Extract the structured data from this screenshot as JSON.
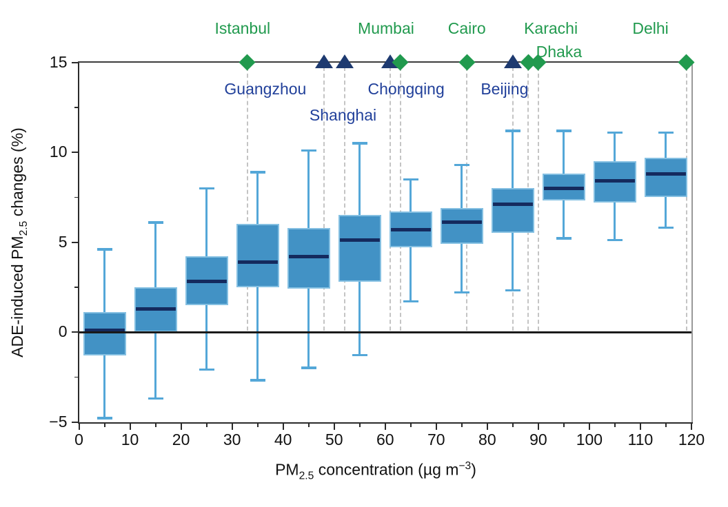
{
  "labels": {
    "y": {
      "pre": "ADE-induced PM",
      "sub": "2.5",
      "post": " changes (%)"
    },
    "x": {
      "pre": "PM",
      "sub": "2.5",
      "mid": " concentration (µg m",
      "sup": "−3",
      "post": ")"
    }
  },
  "colors": {
    "box_fill": "#4292c5",
    "box_edge": "#85c0e2",
    "median": "#142a5e",
    "whisker": "#54a7d8",
    "zero_line": "#1a1a1a",
    "spine_dark": "#2a2a2a",
    "spine_top": "#3c3c3c",
    "spine_right": "#999999",
    "dashed_line": "#c4c4c4",
    "green": "#219a4e",
    "navy_marker": "#1e3a70",
    "navy_text": "#21409a",
    "tick_text": "#111111"
  },
  "chart_data": {
    "type": "boxplot",
    "title": "",
    "xlabel": "PM2.5 concentration (µg m−3)",
    "ylabel": "ADE-induced PM2.5 changes (%)",
    "xlim": [
      0,
      120
    ],
    "ylim": [
      -5,
      15
    ],
    "grid": false,
    "zero_line": true,
    "x_tick_values": [
      0,
      10,
      20,
      30,
      40,
      50,
      60,
      70,
      80,
      90,
      100,
      110,
      120
    ],
    "x_tick_labels": [
      "0",
      "10",
      "20",
      "30",
      "40",
      "50",
      "60",
      "70",
      "80",
      "90",
      "100",
      "110",
      "120"
    ],
    "x_minor_ticks": [
      5,
      15,
      25,
      35,
      45,
      55,
      65,
      75,
      85,
      95,
      105,
      115
    ],
    "y_tick_values": [
      -5,
      0,
      5,
      10,
      15
    ],
    "y_tick_labels": [
      "−5",
      "0",
      "5",
      "10",
      "15"
    ],
    "y_minor_ticks": [
      -2.5,
      2.5,
      7.5,
      12.5
    ],
    "box_width": 8.4,
    "boxes": [
      {
        "x": 5,
        "whisker_low": -4.8,
        "q1": -1.3,
        "median": 0.1,
        "q3": 1.1,
        "whisker_high": 4.6
      },
      {
        "x": 15,
        "whisker_low": -3.7,
        "q1": 0.0,
        "median": 1.3,
        "q3": 2.5,
        "whisker_high": 6.1
      },
      {
        "x": 25,
        "whisker_low": -2.1,
        "q1": 1.5,
        "median": 2.8,
        "q3": 4.2,
        "whisker_high": 8.0
      },
      {
        "x": 35,
        "whisker_low": -2.7,
        "q1": 2.5,
        "median": 3.9,
        "q3": 6.0,
        "whisker_high": 8.9
      },
      {
        "x": 45,
        "whisker_low": -2.0,
        "q1": 2.4,
        "median": 4.2,
        "q3": 5.8,
        "whisker_high": 10.1
      },
      {
        "x": 55,
        "whisker_low": -1.3,
        "q1": 2.8,
        "median": 5.1,
        "q3": 6.5,
        "whisker_high": 10.5
      },
      {
        "x": 65,
        "whisker_low": 1.7,
        "q1": 4.7,
        "median": 5.7,
        "q3": 6.7,
        "whisker_high": 8.5
      },
      {
        "x": 75,
        "whisker_low": 2.2,
        "q1": 4.9,
        "median": 6.1,
        "q3": 6.9,
        "whisker_high": 9.3
      },
      {
        "x": 85,
        "whisker_low": 2.3,
        "q1": 5.5,
        "median": 7.1,
        "q3": 8.0,
        "whisker_high": 11.2
      },
      {
        "x": 95,
        "whisker_low": 5.2,
        "q1": 7.3,
        "median": 8.0,
        "q3": 8.8,
        "whisker_high": 11.2
      },
      {
        "x": 105,
        "whisker_low": 5.1,
        "q1": 7.2,
        "median": 8.4,
        "q3": 9.5,
        "whisker_high": 11.1
      },
      {
        "x": 115,
        "whisker_low": 5.8,
        "q1": 7.5,
        "median": 8.8,
        "q3": 9.7,
        "whisker_high": 11.1
      }
    ],
    "cities": [
      {
        "name": "Istanbul",
        "pm25": 33,
        "marker": "diamond",
        "color": "green",
        "label_row": 1,
        "label_dx": -7
      },
      {
        "name": "Guangzhou",
        "pm25": 48,
        "marker": "triangle",
        "color": "navy",
        "label_row": 1,
        "label_dx": -85
      },
      {
        "name": "Shanghai",
        "pm25": 52,
        "marker": "triangle",
        "color": "navy",
        "label_row": 2,
        "label_dx": -2
      },
      {
        "name": "Chongqing",
        "pm25": 61,
        "marker": "triangle",
        "color": "navy",
        "label_row": 1,
        "label_dx": 23
      },
      {
        "name": "Mumbai",
        "pm25": 63,
        "marker": "diamond",
        "color": "green",
        "label_row": 1,
        "label_dx": -21
      },
      {
        "name": "Cairo",
        "pm25": 76,
        "marker": "diamond",
        "color": "green",
        "label_row": 1,
        "label_dx": 0
      },
      {
        "name": "Beijing",
        "pm25": 85,
        "marker": "triangle",
        "color": "navy",
        "label_row": 1,
        "label_dx": -12
      },
      {
        "name": "Karachi",
        "pm25": 88,
        "marker": "diamond",
        "color": "green",
        "label_row": 1,
        "label_dx": 33
      },
      {
        "name": "Dhaka",
        "pm25": 90,
        "marker": "diamond",
        "color": "green",
        "label_row": 2,
        "label_dx": 30
      },
      {
        "name": "Delhi",
        "pm25": 119,
        "marker": "diamond",
        "color": "green",
        "label_row": 1,
        "label_dx": -52
      }
    ]
  }
}
